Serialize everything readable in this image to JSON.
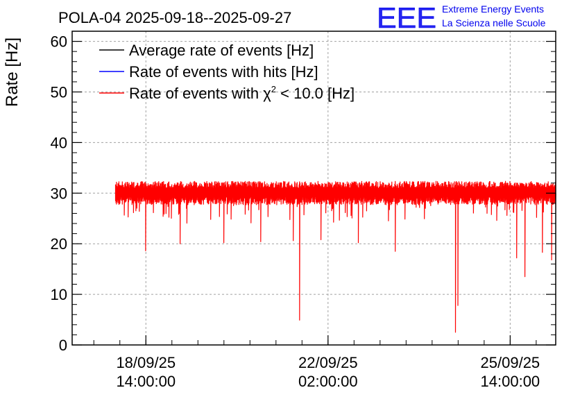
{
  "chart_data": {
    "type": "line",
    "title": "POLA-04 2025-09-18--2025-09-27",
    "ylabel": "Rate [Hz]",
    "xlabel": "",
    "ylim": [
      0,
      62
    ],
    "yticks": [
      0,
      10,
      20,
      30,
      40,
      50,
      60
    ],
    "grid": true,
    "x_range": [
      "2025-09-17 04:00",
      "2025-09-26 11:00"
    ],
    "x_ticks": [
      {
        "time": "2025-09-18 14:00",
        "date": "18/09/25",
        "clock": "14:00:00"
      },
      {
        "time": "2025-09-22 02:00",
        "date": "22/09/25",
        "clock": "02:00:00"
      },
      {
        "time": "2025-09-25 14:00",
        "date": "25/09/25",
        "clock": "14:00:00"
      }
    ],
    "legend_position": "top-left",
    "series": [
      {
        "name": "Average rate of events [Hz]",
        "color": "#000000",
        "description": "flat mean rate",
        "value": 30.3
      },
      {
        "name": "Rate of events with hits [Hz]",
        "color": "#0000ff",
        "description": "mean rate with hits",
        "value": 30.8
      },
      {
        "name": "Rate of events with χ² < 10.0 [Hz]",
        "color": "#ff0000",
        "description": "noisy time series",
        "band_low": 28.5,
        "band_high": 31.5,
        "data_start": "2025-09-18 00:00",
        "data_end": "2025-09-26 11:00",
        "dips": [
          {
            "time": "2025-09-18 14:00",
            "value": 18.6
          },
          {
            "time": "2025-09-19 06:00",
            "value": 20.0
          },
          {
            "time": "2025-09-20 02:00",
            "value": 20.2
          },
          {
            "time": "2025-09-20 19:00",
            "value": 20.4
          },
          {
            "time": "2025-09-21 10:00",
            "value": 20.6
          },
          {
            "time": "2025-09-21 13:00",
            "value": 4.9
          },
          {
            "time": "2025-09-21 23:00",
            "value": 20.8
          },
          {
            "time": "2025-09-22 16:00",
            "value": 20.2
          },
          {
            "time": "2025-09-23 09:00",
            "value": 18.5
          },
          {
            "time": "2025-09-24 13:00",
            "value": 2.5
          },
          {
            "time": "2025-09-24 14:00",
            "value": 7.8
          },
          {
            "time": "2025-09-25 17:00",
            "value": 17.2
          },
          {
            "time": "2025-09-25 21:00",
            "value": 13.5
          },
          {
            "time": "2025-09-26 05:00",
            "value": 18.3
          },
          {
            "time": "2025-09-26 09:00",
            "value": 16.8
          }
        ]
      }
    ]
  },
  "logo": {
    "mark": "EEE",
    "line1": "Extreme Energy Events",
    "line2": "La Scienza nelle Scuole",
    "color": "#0000ee"
  },
  "legend": {
    "line1": "Average rate of events [Hz]",
    "line2": "Rate of events with hits [Hz]",
    "line3_prefix": "Rate of events with ",
    "line3_chi": "χ",
    "line3_sup": "2",
    "line3_suffix": " < 10.0 [Hz]"
  }
}
